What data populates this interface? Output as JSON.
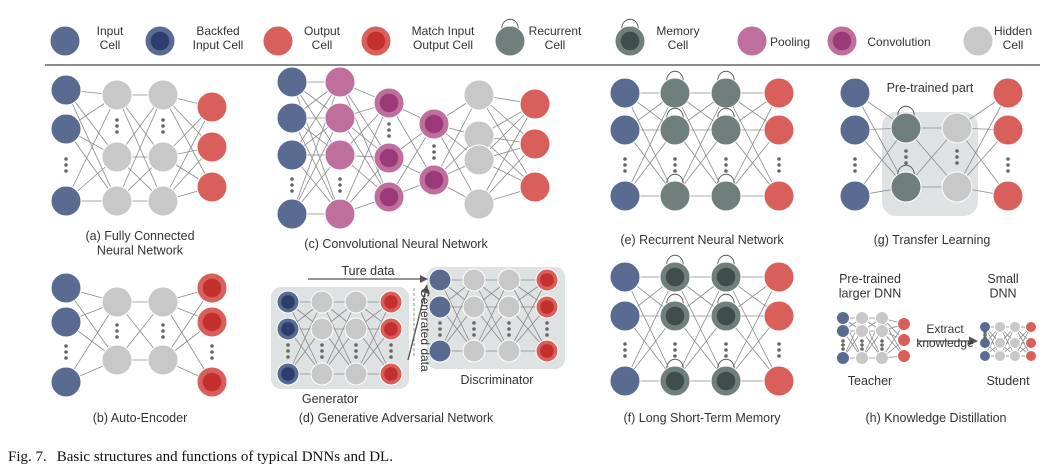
{
  "legend": [
    {
      "id": "input",
      "label": "Input\nCell"
    },
    {
      "id": "backfed",
      "label": "Backfed\nInput Cell"
    },
    {
      "id": "output",
      "label": "Output\nCell"
    },
    {
      "id": "match",
      "label": "Match Input\nOutput Cell"
    },
    {
      "id": "recurrent",
      "label": "Recurrent\nCell"
    },
    {
      "id": "memory",
      "label": "Memory\nCell"
    },
    {
      "id": "pooling",
      "label": "Pooling"
    },
    {
      "id": "convolution",
      "label": "Convolution"
    },
    {
      "id": "hidden",
      "label": "Hidden\nCell"
    }
  ],
  "panels": {
    "a": "(a)  Fully Connected\nNeural Network",
    "b": "(b) Auto-Encoder",
    "c": "(c) Convolutional Neural Network",
    "d": "(d) Generative Adversarial Network",
    "e": "(e) Recurrent Neural Network",
    "f": "(f) Long Short-Term Memory",
    "g": "(g) Transfer Learning",
    "h": "(h) Knowledge Distillation"
  },
  "gan": {
    "true_data": "Ture data",
    "generated_data": "Generated data",
    "generator": "Generator",
    "discriminator": "Discriminator"
  },
  "transfer": {
    "pretrained_part": "Pre-trained part"
  },
  "distill": {
    "teacher_title": "Pre-trained\nlarger DNN",
    "student_title": "Small\nDNN",
    "arrow": "Extract\nknowledge",
    "teacher": "Teacher",
    "student": "Student"
  },
  "caption": {
    "number": "Fig. 7.",
    "text": "Basic structures and functions of typical DNNs and DL."
  },
  "colors": {
    "input": "#5a6b92",
    "backfed_outer": "#5a6b92",
    "backfed_inner": "#2c3d6e",
    "output": "#d9605a",
    "match_outer": "#d9605a",
    "match_inner": "#c4302e",
    "recurrent": "#6f7f7c",
    "memory_outer": "#6f7f7c",
    "memory_inner": "#3f4d4b",
    "pooling": "#bf6f9e",
    "conv_outer": "#bf6f9e",
    "conv_inner": "#9b3a78",
    "hidden": "#c8c8c8",
    "group_bg": "#dfe2e3",
    "line": "#8a8a8a"
  }
}
